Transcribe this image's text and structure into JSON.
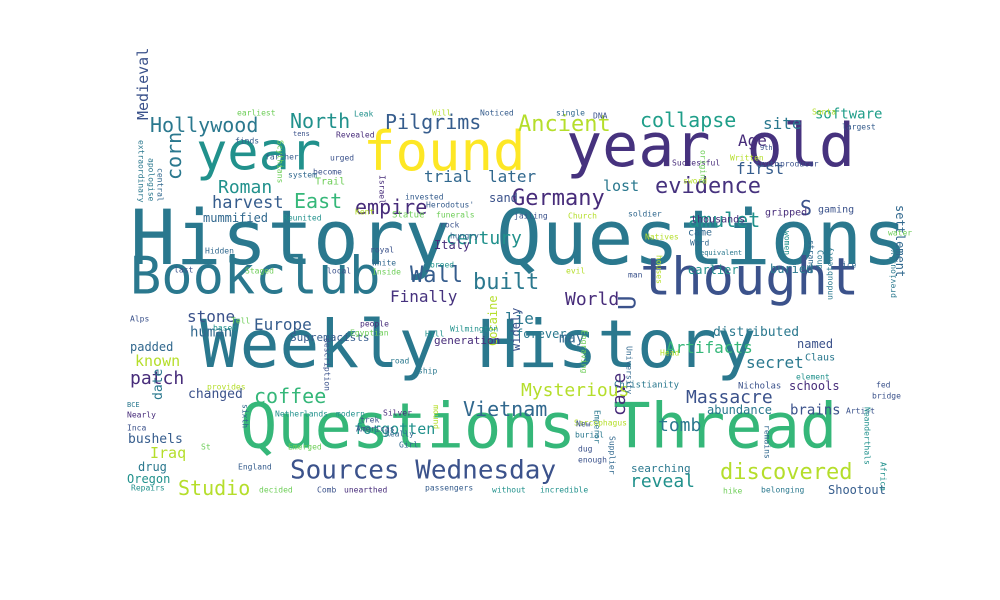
{
  "palette": {
    "dark_purple": "#472c7a",
    "purple": "#46327e",
    "indigo": "#3b528b",
    "blue": "#365d8d",
    "steel": "#31688e",
    "teal": "#2a788e",
    "teal_green": "#21918c",
    "sea": "#1f9e89",
    "green": "#35b779",
    "lime": "#6ece58",
    "yellow_green": "#b5de2b",
    "yellow": "#fde725"
  },
  "words": [
    {
      "text": "History Questions",
      "color": "teal"
    },
    {
      "text": "Weekly History",
      "color": "teal"
    },
    {
      "text": "Questions Thread",
      "color": "green"
    },
    {
      "text": "year old",
      "color": "purple"
    },
    {
      "text": "found",
      "color": "yellow"
    },
    {
      "text": "year",
      "color": "teal_green"
    },
    {
      "text": "thought",
      "color": "indigo"
    },
    {
      "text": "Bookclub",
      "color": "teal"
    },
    {
      "text": "Sources Wednesday",
      "color": "indigo"
    },
    {
      "text": "Hollywood",
      "color": "teal"
    },
    {
      "text": "North",
      "color": "teal_green"
    },
    {
      "text": "Pilgrims",
      "color": "blue"
    },
    {
      "text": "Ancient",
      "color": "yellow_green"
    },
    {
      "text": "collapse",
      "color": "sea"
    },
    {
      "text": "evidence",
      "color": "purple"
    },
    {
      "text": "Germany",
      "color": "dark_purple"
    },
    {
      "text": "Roman",
      "color": "teal_green"
    },
    {
      "text": "East",
      "color": "green"
    },
    {
      "text": "empire",
      "color": "dark_purple"
    },
    {
      "text": "trial",
      "color": "steel"
    },
    {
      "text": "later",
      "color": "steel"
    },
    {
      "text": "harvest",
      "color": "blue"
    },
    {
      "text": "Wall",
      "color": "blue"
    },
    {
      "text": "built",
      "color": "teal"
    },
    {
      "text": "amulet",
      "color": "teal_green"
    },
    {
      "text": "corn",
      "color": "teal"
    },
    {
      "text": "Finally",
      "color": "purple"
    },
    {
      "text": "World",
      "color": "dark_purple"
    },
    {
      "text": "century",
      "color": "teal_green"
    },
    {
      "text": "Europe",
      "color": "blue"
    },
    {
      "text": "stone",
      "color": "indigo"
    },
    {
      "text": "human",
      "color": "steel"
    },
    {
      "text": "patch",
      "color": "dark_purple"
    },
    {
      "text": "coffee",
      "color": "green"
    },
    {
      "text": "Vietnam",
      "color": "steel"
    },
    {
      "text": "Massacre",
      "color": "indigo"
    },
    {
      "text": "tomb",
      "color": "teal"
    },
    {
      "text": "cave",
      "color": "dark_purple"
    },
    {
      "text": "reveal",
      "color": "teal_green"
    },
    {
      "text": "discovered",
      "color": "yellow_green"
    },
    {
      "text": "Studio",
      "color": "yellow_green"
    },
    {
      "text": "Mysterious",
      "color": "yellow_green"
    },
    {
      "text": "forgotten",
      "color": "teal_green"
    },
    {
      "text": "known",
      "color": "yellow_green"
    },
    {
      "text": "Artifacts",
      "color": "green"
    },
    {
      "text": "secret",
      "color": "teal"
    },
    {
      "text": "distributed",
      "color": "teal"
    },
    {
      "text": "first",
      "color": "blue"
    },
    {
      "text": "lost",
      "color": "teal"
    },
    {
      "text": "Age",
      "color": "dark_purple"
    },
    {
      "text": "site",
      "color": "teal"
    },
    {
      "text": "software",
      "color": "sea"
    },
    {
      "text": "settlement",
      "color": "steel"
    },
    {
      "text": "Medieval",
      "color": "indigo"
    },
    {
      "text": "Iraq",
      "color": "yellow_green"
    },
    {
      "text": "date",
      "color": "teal"
    },
    {
      "text": "Italy",
      "color": "dark_purple"
    },
    {
      "text": "lie",
      "color": "teal"
    },
    {
      "text": "may",
      "color": "steel"
    },
    {
      "text": "U",
      "color": "indigo"
    },
    {
      "text": "S",
      "color": "indigo"
    },
    {
      "text": "changed",
      "color": "indigo"
    },
    {
      "text": "bushels",
      "color": "blue"
    },
    {
      "text": "mummified",
      "color": "steel"
    },
    {
      "text": "padded",
      "color": "steel"
    },
    {
      "text": "sand",
      "color": "indigo"
    },
    {
      "text": "buried",
      "color": "teal"
    },
    {
      "text": "earlier",
      "color": "teal_green"
    },
    {
      "text": "named",
      "color": "indigo"
    },
    {
      "text": "schools",
      "color": "dark_purple"
    },
    {
      "text": "brains",
      "color": "indigo"
    },
    {
      "text": "abundance",
      "color": "teal"
    },
    {
      "text": "thousands",
      "color": "dark_purple"
    },
    {
      "text": "searching",
      "color": "teal"
    },
    {
      "text": "Shootout",
      "color": "blue"
    },
    {
      "text": "gaming",
      "color": "indigo"
    },
    {
      "text": "gripped",
      "color": "dark_purple"
    },
    {
      "text": "drug",
      "color": "teal"
    },
    {
      "text": "Oregon",
      "color": "teal_green"
    },
    {
      "text": "Cocaine",
      "color": "yellow_green"
    },
    {
      "text": "widely",
      "color": "indigo"
    },
    {
      "text": "forever",
      "color": "teal"
    },
    {
      "text": "generation",
      "color": "dark_purple"
    },
    {
      "text": "Supremacists",
      "color": "blue"
    },
    {
      "text": "came",
      "color": "steel"
    },
    {
      "text": "Christianity",
      "color": "teal"
    },
    {
      "text": "earliest",
      "color": "lime"
    },
    {
      "text": "Leak",
      "color": "teal_green"
    },
    {
      "text": "Will",
      "color": "yellow_green"
    },
    {
      "text": "Noticed",
      "color": "blue"
    },
    {
      "text": "single",
      "color": "steel"
    },
    {
      "text": "DNA",
      "color": "indigo"
    },
    {
      "text": "Santa",
      "color": "yellow_green"
    },
    {
      "text": "largest",
      "color": "blue"
    },
    {
      "text": "Revealed",
      "color": "dark_purple"
    },
    {
      "text": "tens",
      "color": "indigo"
    },
    {
      "text": "urged",
      "color": "indigo"
    },
    {
      "text": "Trail",
      "color": "lime"
    },
    {
      "text": "Israel",
      "color": "dark_purple"
    },
    {
      "text": "Successful",
      "color": "dark_purple"
    },
    {
      "text": "invested",
      "color": "blue"
    },
    {
      "text": "Herodotus'",
      "color": "blue"
    },
    {
      "text": "Kent",
      "color": "yellow_green"
    },
    {
      "text": "Statue",
      "color": "lime"
    },
    {
      "text": "jailing",
      "color": "indigo"
    },
    {
      "text": "Church",
      "color": "yellow_green"
    },
    {
      "text": "soldier",
      "color": "steel"
    },
    {
      "text": "sword",
      "color": "yellow_green"
    },
    {
      "text": "truth",
      "color": "indigo"
    },
    {
      "text": "Written",
      "color": "yellow_green"
    },
    {
      "text": "producer",
      "color": "indigo"
    },
    {
      "text": "9th",
      "color": "indigo"
    },
    {
      "text": "finds",
      "color": "blue"
    },
    {
      "text": "farther",
      "color": "blue"
    },
    {
      "text": "become",
      "color": "indigo"
    },
    {
      "text": "system",
      "color": "steel"
    },
    {
      "text": "Reunited",
      "color": "teal_green"
    },
    {
      "text": "funerals",
      "color": "lime"
    },
    {
      "text": "rock",
      "color": "indigo"
    },
    {
      "text": "hungry",
      "color": "blue"
    },
    {
      "text": "royal",
      "color": "indigo"
    },
    {
      "text": "White",
      "color": "steel"
    },
    {
      "text": "breed",
      "color": "teal_green"
    },
    {
      "text": "Word",
      "color": "steel"
    },
    {
      "text": "Natives",
      "color": "yellow_green"
    },
    {
      "text": "equivalent",
      "color": "teal"
    },
    {
      "text": "Hidden",
      "color": "steel"
    },
    {
      "text": "last",
      "color": "indigo"
    },
    {
      "text": "Staged",
      "color": "lime"
    },
    {
      "text": "local",
      "color": "indigo"
    },
    {
      "text": "Inside",
      "color": "lime"
    },
    {
      "text": "evil",
      "color": "yellow_green"
    },
    {
      "text": "man",
      "color": "indigo"
    },
    {
      "text": "houses",
      "color": "yellow_green"
    },
    {
      "text": "Coup",
      "color": "teal"
    },
    {
      "text": "strange",
      "color": "steel"
    },
    {
      "text": "Alps",
      "color": "indigo"
    },
    {
      "text": "Tell",
      "color": "lime"
    },
    {
      "text": "based",
      "color": "teal_green"
    },
    {
      "text": "people",
      "color": "dark_purple"
    },
    {
      "text": "Egyptian",
      "color": "lime"
    },
    {
      "text": "Hill",
      "color": "teal_green"
    },
    {
      "text": "Wilmington",
      "color": "teal_green"
    },
    {
      "text": "previously",
      "color": "teal"
    },
    {
      "text": "undoubtedly",
      "color": "teal"
    },
    {
      "text": "description",
      "color": "indigo"
    },
    {
      "text": "road",
      "color": "teal"
    },
    {
      "text": "ship",
      "color": "teal"
    },
    {
      "text": "Engraving",
      "color": "lime"
    },
    {
      "text": "University",
      "color": "steel"
    },
    {
      "text": "Head",
      "color": "yellow_green"
    },
    {
      "text": "Claus",
      "color": "teal"
    },
    {
      "text": "element",
      "color": "teal_green"
    },
    {
      "text": "fed",
      "color": "indigo"
    },
    {
      "text": "bridge",
      "color": "indigo"
    },
    {
      "text": "Artist",
      "color": "indigo"
    },
    {
      "text": "Nicholas",
      "color": "indigo"
    },
    {
      "text": "BCE",
      "color": "teal"
    },
    {
      "text": "provides",
      "color": "yellow_green"
    },
    {
      "text": "Nearly",
      "color": "dark_purple"
    },
    {
      "text": "sixth",
      "color": "steel"
    },
    {
      "text": "Netherlands",
      "color": "teal_green"
    },
    {
      "text": "modern",
      "color": "teal_green"
    },
    {
      "text": "Silver",
      "color": "dark_purple"
    },
    {
      "text": "mound",
      "color": "yellow_green"
    },
    {
      "text": "Inca",
      "color": "indigo"
    },
    {
      "text": "St",
      "color": "lime"
    },
    {
      "text": "Emerged",
      "color": "lime"
    },
    {
      "text": "trek",
      "color": "indigo"
    },
    {
      "text": "Americas",
      "color": "indigo"
    },
    {
      "text": "Really",
      "color": "steel"
    },
    {
      "text": "Girl",
      "color": "steel"
    },
    {
      "text": "burial",
      "color": "teal"
    },
    {
      "text": "dug",
      "color": "indigo"
    },
    {
      "text": "enough",
      "color": "indigo"
    },
    {
      "text": "Supplier",
      "color": "steel"
    },
    {
      "text": "Emperor",
      "color": "teal"
    },
    {
      "text": "Sarcophagus",
      "color": "yellow_green"
    },
    {
      "text": "New",
      "color": "indigo"
    },
    {
      "text": "remains",
      "color": "steel"
    },
    {
      "text": "Neanderthals",
      "color": "teal_green"
    },
    {
      "text": "Africa",
      "color": "teal_green"
    },
    {
      "text": "England",
      "color": "blue"
    },
    {
      "text": "Repairs",
      "color": "teal_green"
    },
    {
      "text": "decided",
      "color": "lime"
    },
    {
      "text": "Comb",
      "color": "indigo"
    },
    {
      "text": "unearthed",
      "color": "dark_purple"
    },
    {
      "text": "passengers",
      "color": "blue"
    },
    {
      "text": "without",
      "color": "teal_green"
    },
    {
      "text": "incredible",
      "color": "teal_green"
    },
    {
      "text": "hike",
      "color": "lime"
    },
    {
      "text": "belonging",
      "color": "teal"
    },
    {
      "text": "extraordinary",
      "color": "teal"
    },
    {
      "text": "apologise",
      "color": "teal"
    },
    {
      "text": "central",
      "color": "steel"
    },
    {
      "text": "Scythians",
      "color": "lime"
    },
    {
      "text": "origins",
      "color": "lime"
    },
    {
      "text": "women",
      "color": "teal_green"
    },
    {
      "text": "ice",
      "color": "steel"
    },
    {
      "text": "water",
      "color": "lime"
    }
  ]
}
